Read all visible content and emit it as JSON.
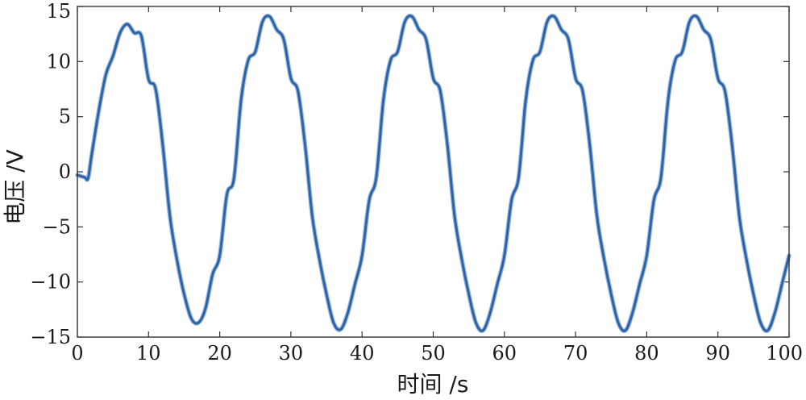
{
  "chart_data": {
    "type": "line",
    "title": "",
    "xlabel": "时间 /s",
    "ylabel": "电压 /V",
    "xlim": [
      0,
      100
    ],
    "ylim": [
      -15,
      15
    ],
    "x_ticks": [
      0,
      10,
      20,
      30,
      40,
      50,
      60,
      70,
      80,
      90,
      100
    ],
    "y_ticks": [
      -15,
      -10,
      -5,
      0,
      5,
      10,
      15
    ],
    "x_tick_labels": [
      "0",
      "10",
      "20",
      "30",
      "40",
      "50",
      "60",
      "70",
      "80",
      "90",
      "100"
    ],
    "y_tick_labels": [
      "−15",
      "−10",
      "−5",
      "0",
      "5",
      "10",
      "15"
    ],
    "grid": false,
    "series": [
      {
        "color": "#2e63a5",
        "x": [
          0,
          1,
          1.5,
          2,
          3,
          4,
          5,
          6,
          7,
          8,
          9,
          10,
          11,
          12,
          13,
          14,
          15,
          16,
          17,
          18,
          19,
          20,
          21,
          22,
          23,
          24,
          25,
          26,
          27,
          28,
          29,
          30,
          31,
          32,
          33,
          34,
          35,
          36,
          37,
          38,
          39,
          40,
          41,
          42,
          43,
          44,
          45,
          46,
          47,
          48,
          49,
          50,
          51,
          52,
          53,
          54,
          55,
          56,
          57,
          58,
          59,
          60,
          61,
          62,
          63,
          64,
          65,
          66,
          67,
          68,
          69,
          70,
          71,
          72,
          73,
          74,
          75,
          76,
          77,
          78,
          79,
          80,
          81,
          82,
          83,
          84,
          85,
          86,
          87,
          88,
          89,
          90,
          91,
          92,
          93,
          94,
          95,
          96,
          97,
          98,
          99,
          100
        ],
        "y": [
          -0.3,
          -0.5,
          -0.6,
          1.5,
          5.5,
          8.8,
          10.5,
          12.6,
          13.4,
          12.6,
          12.3,
          8.4,
          7.5,
          2.4,
          -4.0,
          -8.0,
          -11.1,
          -13.3,
          -13.7,
          -12.4,
          -9.3,
          -7.6,
          -2.1,
          -0.6,
          6.5,
          10.1,
          10.9,
          13.6,
          14.1,
          12.9,
          12.0,
          8.5,
          7.3,
          2.4,
          -4.0,
          -7.9,
          -11.1,
          -13.7,
          -14.3,
          -12.8,
          -10.2,
          -7.6,
          -2.6,
          -0.5,
          6.5,
          10.1,
          10.9,
          13.6,
          14.1,
          12.9,
          12.0,
          8.5,
          7.3,
          2.4,
          -4.0,
          -7.9,
          -11.1,
          -13.7,
          -14.4,
          -12.8,
          -10.2,
          -7.6,
          -2.6,
          -0.5,
          6.5,
          10.1,
          10.9,
          13.6,
          14.1,
          12.9,
          12.0,
          8.5,
          7.3,
          2.4,
          -4.0,
          -7.9,
          -11.1,
          -13.7,
          -14.4,
          -12.8,
          -10.2,
          -7.6,
          -2.6,
          -0.5,
          6.5,
          10.1,
          10.9,
          13.6,
          14.1,
          12.9,
          12.0,
          8.5,
          7.3,
          2.4,
          -4.0,
          -7.9,
          -11.1,
          -13.7,
          -14.4,
          -12.8,
          -10.2,
          -7.6
        ]
      }
    ]
  }
}
